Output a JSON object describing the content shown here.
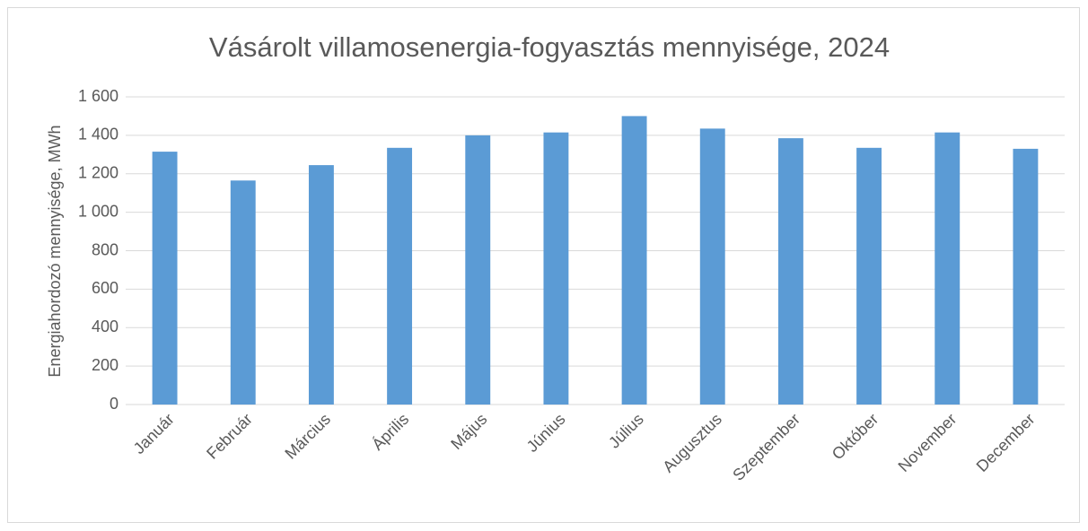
{
  "chart_data": {
    "type": "bar",
    "title": "Vásárolt villamosenergia-fogyasztás mennyisége, 2024",
    "y_label": "Energiahordozó mennyisége, MWh",
    "categories": [
      "Január",
      "Február",
      "Március",
      "Április",
      "Május",
      "Június",
      "Július",
      "Augusztus",
      "Szeptember",
      "Október",
      "November",
      "December"
    ],
    "values": [
      1315,
      1165,
      1245,
      1335,
      1400,
      1415,
      1500,
      1435,
      1385,
      1335,
      1415,
      1330
    ],
    "color": "#5b9bd5",
    "ylim": [
      0,
      1600
    ],
    "yticks": [
      0,
      200,
      400,
      600,
      800,
      {
        "value": 1000,
        "label": "1 000"
      },
      {
        "value": 1200,
        "label": "1 200"
      },
      {
        "value": 1400,
        "label": "1 400"
      },
      {
        "value": 1600,
        "label": "1 600"
      }
    ],
    "grid": true
  }
}
